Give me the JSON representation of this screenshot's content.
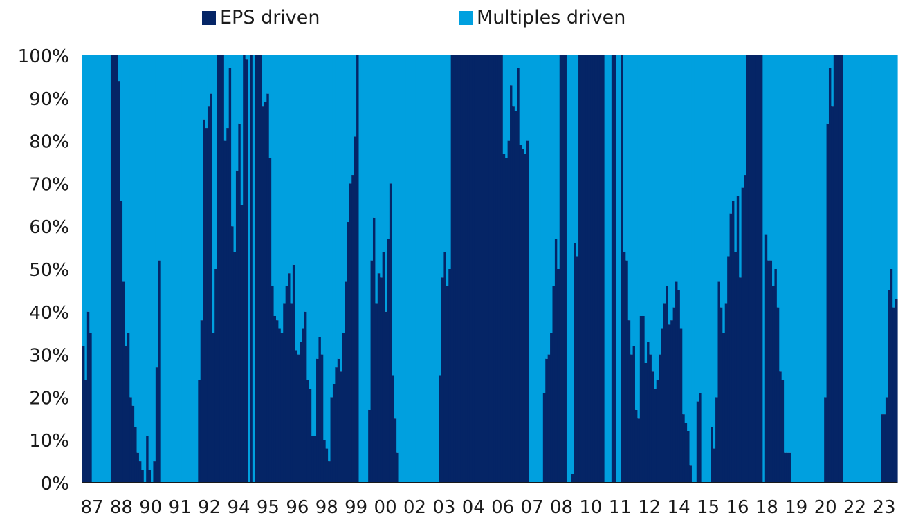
{
  "legend": {
    "eps_label": "EPS driven",
    "multiples_label": "Multiples driven"
  },
  "colors": {
    "eps": "#052566",
    "multiples": "#00a0df",
    "axis": "#1a1a1a"
  },
  "chart_data": {
    "type": "bar",
    "stacked": true,
    "series": [
      {
        "name": "EPS driven",
        "color": "#052566"
      },
      {
        "name": "Multiples driven",
        "color": "#00a0df"
      }
    ],
    "y_axis": {
      "ylim": [
        0,
        100
      ],
      "ticks": [
        "0%",
        "10%",
        "20%",
        "30%",
        "40%",
        "50%",
        "60%",
        "70%",
        "80%",
        "90%",
        "100%"
      ]
    },
    "x_tick_labels": [
      "87",
      "88",
      "90",
      "91",
      "92",
      "94",
      "95",
      "96",
      "98",
      "99",
      "00",
      "02",
      "03",
      "04",
      "06",
      "07",
      "08",
      "10",
      "11",
      "12",
      "14",
      "15",
      "16",
      "18",
      "19",
      "20",
      "22",
      "23"
    ],
    "eps_share_pct": [
      32,
      24,
      40,
      35,
      0,
      0,
      0,
      0,
      0,
      0,
      0,
      0,
      100,
      100,
      100,
      94,
      66,
      47,
      32,
      35,
      20,
      18,
      13,
      7,
      5,
      3,
      0,
      11,
      3,
      0,
      5,
      27,
      52,
      0,
      0,
      0,
      0,
      0,
      0,
      0,
      0,
      0,
      0,
      0,
      0,
      0,
      0,
      0,
      0,
      24,
      38,
      85,
      83,
      88,
      91,
      35,
      50,
      100,
      100,
      100,
      80,
      83,
      97,
      60,
      54,
      73,
      84,
      65,
      100,
      99,
      0,
      100,
      0,
      100,
      100,
      100,
      88,
      89,
      91,
      76,
      46,
      39,
      38,
      36,
      35,
      42,
      46,
      49,
      42,
      51,
      31,
      30,
      33,
      36,
      40,
      24,
      22,
      11,
      11,
      29,
      34,
      30,
      10,
      8,
      5,
      20,
      23,
      27,
      29,
      26,
      35,
      47,
      61,
      70,
      72,
      81,
      100,
      0,
      0,
      0,
      0,
      17,
      52,
      62,
      42,
      49,
      48,
      54,
      40,
      57,
      70,
      25,
      15,
      7,
      0,
      0,
      0,
      0,
      0,
      0,
      0,
      0,
      0,
      0,
      0,
      0,
      0,
      0,
      0,
      0,
      0,
      25,
      48,
      54,
      46,
      50,
      100,
      100,
      100,
      100,
      100,
      100,
      100,
      100,
      100,
      100,
      100,
      100,
      100,
      100,
      100,
      100,
      100,
      100,
      100,
      100,
      100,
      100,
      77,
      76,
      80,
      93,
      88,
      87,
      97,
      79,
      78,
      77,
      80,
      0,
      0,
      0,
      0,
      0,
      0,
      21,
      29,
      30,
      35,
      46,
      57,
      50,
      100,
      100,
      100,
      0,
      0,
      2,
      56,
      53,
      100,
      100,
      100,
      100,
      100,
      100,
      100,
      100,
      100,
      100,
      100,
      0,
      0,
      0,
      100,
      100,
      0,
      0,
      100,
      54,
      52,
      38,
      30,
      32,
      17,
      15,
      39,
      39,
      28,
      33,
      30,
      26,
      22,
      24,
      30,
      36,
      42,
      46,
      37,
      38,
      41,
      47,
      45,
      36,
      16,
      14,
      12,
      4,
      0,
      0,
      19,
      21,
      0,
      0,
      0,
      0,
      13,
      8,
      20,
      47,
      41,
      35,
      42,
      53,
      63,
      66,
      54,
      67,
      48,
      69,
      72,
      100,
      100,
      100,
      100,
      100,
      100,
      100,
      0,
      58,
      52,
      52,
      46,
      50,
      41,
      26,
      24,
      7,
      7,
      7,
      0,
      0,
      0,
      0,
      0,
      0,
      0,
      0,
      0,
      0,
      0,
      0,
      0,
      0,
      20,
      84,
      97,
      88,
      100,
      100,
      100,
      100,
      0,
      0,
      0,
      0,
      0,
      0,
      0,
      0,
      0,
      0,
      0,
      0,
      0,
      0,
      0,
      0,
      16,
      16,
      20,
      45,
      50,
      41,
      43
    ]
  }
}
